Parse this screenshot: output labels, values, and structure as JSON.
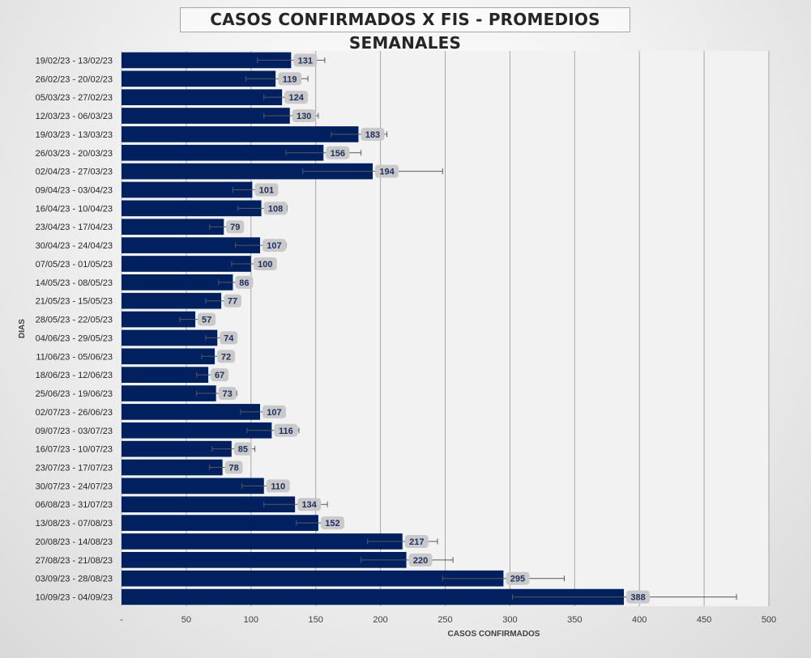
{
  "chart_data": {
    "type": "bar",
    "orientation": "horizontal",
    "title": "CASOS CONFIRMADOS X FIS - PROMEDIOS SEMANALES",
    "xlabel": "CASOS CONFIRMADOS",
    "ylabel": "DIAS",
    "xlim": [
      0,
      500
    ],
    "xticks": [
      "-",
      "50",
      "100",
      "150",
      "200",
      "250",
      "300",
      "350",
      "400",
      "450",
      "500"
    ],
    "grid": true,
    "legend": "none",
    "colors": {
      "bar": "#002060",
      "label_bg": "#c9c9c9",
      "plot_bg": "#f2f2f2",
      "grid": "#a6a6a6"
    },
    "categories": [
      "19/02/23 - 13/02/23",
      "26/02/23 - 20/02/23",
      "05/03/23 - 27/02/23",
      "12/03/23 - 06/03/23",
      "19/03/23 - 13/03/23",
      "26/03/23 - 20/03/23",
      "02/04/23 - 27/03/23",
      "09/04/23 - 03/04/23",
      "16/04/23 - 10/04/23",
      "23/04/23 - 17/04/23",
      "30/04/23 - 24/04/23",
      "07/05/23 - 01/05/23",
      "14/05/23 - 08/05/23",
      "21/05/23 - 15/05/23",
      "28/05/23 - 22/05/23",
      "04/06/23 - 29/05/23",
      "11/06/23 - 05/06/23",
      "18/06/23 - 12/06/23",
      "25/06/23 - 19/06/23",
      "02/07/23 - 26/06/23",
      "09/07/23 - 03/07/23",
      "16/07/23 - 10/07/23",
      "23/07/23 - 17/07/23",
      "30/07/23 - 24/07/23",
      "06/08/23 - 31/07/23",
      "13/08/23 - 07/08/23",
      "20/08/23 - 14/08/23",
      "27/08/23 - 21/08/23",
      "03/09/23 - 28/08/23",
      "10/09/23 - 04/09/23"
    ],
    "values": [
      131,
      119,
      124,
      130,
      183,
      156,
      194,
      101,
      108,
      79,
      107,
      100,
      86,
      77,
      57,
      74,
      72,
      67,
      73,
      107,
      116,
      85,
      78,
      110,
      134,
      152,
      217,
      220,
      295,
      388
    ],
    "error_bars": [
      [
        105,
        157
      ],
      [
        96,
        144
      ],
      [
        110,
        130
      ],
      [
        110,
        152
      ],
      [
        162,
        205
      ],
      [
        127,
        185
      ],
      [
        140,
        248
      ],
      [
        86,
        116
      ],
      [
        90,
        128
      ],
      [
        68,
        92
      ],
      [
        88,
        127
      ],
      [
        85,
        118
      ],
      [
        75,
        96
      ],
      [
        65,
        92
      ],
      [
        45,
        69
      ],
      [
        65,
        84
      ],
      [
        62,
        82
      ],
      [
        58,
        76
      ],
      [
        58,
        89
      ],
      [
        92,
        122
      ],
      [
        97,
        137
      ],
      [
        70,
        103
      ],
      [
        68,
        88
      ],
      [
        93,
        128
      ],
      [
        110,
        159
      ],
      [
        135,
        170
      ],
      [
        190,
        244
      ],
      [
        185,
        256
      ],
      [
        248,
        342
      ],
      [
        302,
        475
      ]
    ]
  }
}
